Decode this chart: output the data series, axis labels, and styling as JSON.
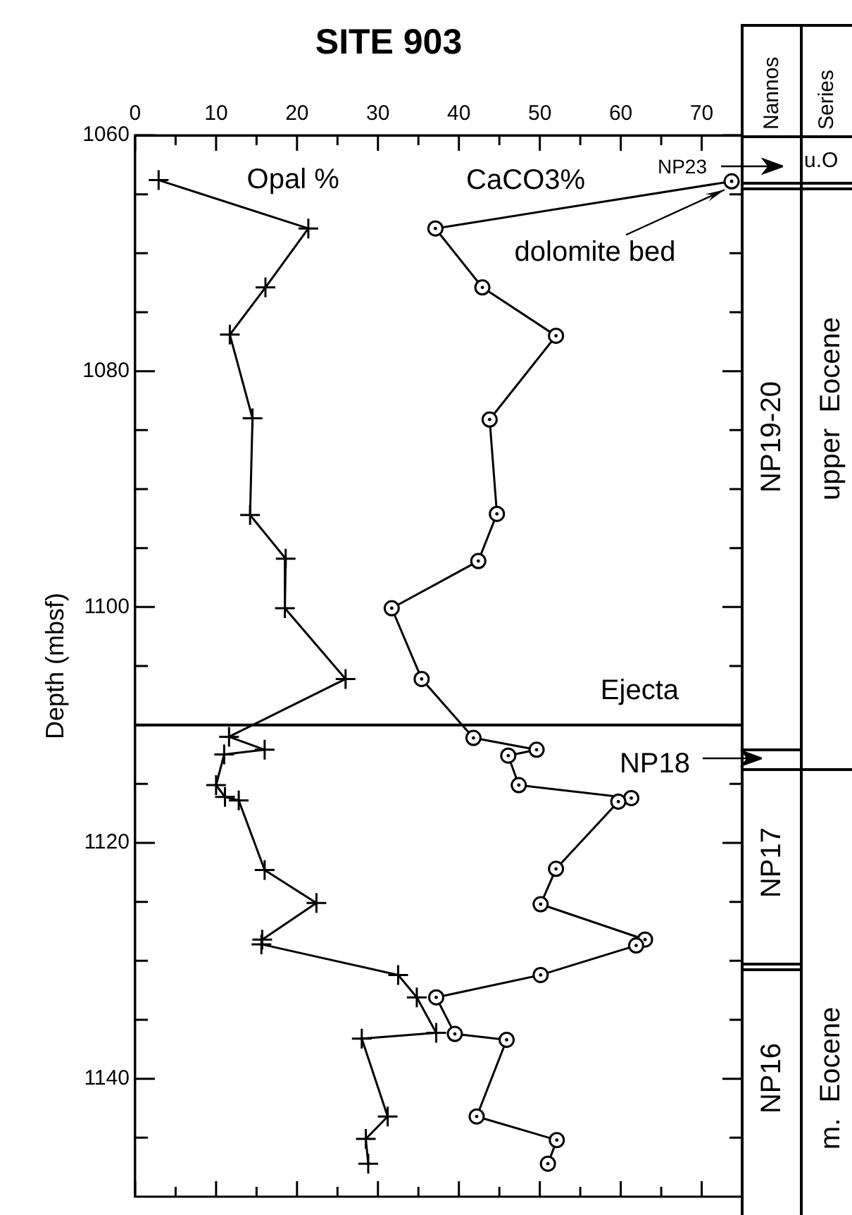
{
  "chart_data": {
    "type": "line",
    "title": "SITE 903",
    "ylabel": "Depth (mbsf)",
    "xlim": [
      0,
      75
    ],
    "xticks": [
      0,
      {
        "value": 5,
        "label": null
      },
      10,
      {
        "value": 15,
        "label": null
      },
      20,
      {
        "value": 25,
        "label": null
      },
      30,
      {
        "value": 35,
        "label": null
      },
      40,
      {
        "value": 45,
        "label": null
      },
      50,
      {
        "value": 55,
        "label": null
      },
      60,
      {
        "value": 65,
        "label": null
      },
      70
    ],
    "ylim": [
      1150,
      1060
    ],
    "yticks": [
      1060,
      {
        "value": 1065,
        "label": null
      },
      {
        "value": 1070,
        "label": null
      },
      {
        "value": 1075,
        "label": null
      },
      1080,
      {
        "value": 1085,
        "label": null
      },
      {
        "value": 1090,
        "label": null
      },
      {
        "value": 1095,
        "label": null
      },
      1100,
      {
        "value": 1105,
        "label": null
      },
      {
        "value": 1110,
        "label": null
      },
      {
        "value": 1115,
        "label": null
      },
      1120,
      {
        "value": 1125,
        "label": null
      },
      {
        "value": 1130,
        "label": null
      },
      {
        "value": 1135,
        "label": null
      },
      1140,
      {
        "value": 1145,
        "label": null
      }
    ],
    "grid": false,
    "legend": false,
    "series": [
      {
        "name": "Opal %",
        "color": "#000000",
        "marker": "cross",
        "x": [
          2.9,
          21.4,
          16.1,
          11.7,
          14.5,
          14.2,
          18.6,
          18.5,
          26.0,
          11.6,
          16.0,
          11.0,
          10.0,
          11.1,
          12.8,
          16.0,
          22.4,
          15.7,
          15.6,
          32.5,
          34.8,
          37.2,
          28.0,
          31.2,
          28.5,
          28.8
        ],
        "values": [
          1063.8,
          1067.9,
          1072.9,
          1076.9,
          1084.0,
          1092.2,
          1095.9,
          1100.1,
          1106.1,
          1111.0,
          1112.1,
          1112.5,
          1115.1,
          1116.1,
          1116.4,
          1122.3,
          1125.1,
          1128.2,
          1128.6,
          1131.2,
          1133.1,
          1136.1,
          1136.6,
          1143.2,
          1145.1,
          1147.2
        ]
      },
      {
        "name": "CaCO3%",
        "color": "#000000",
        "marker": "circle",
        "x": [
          73.7,
          37.1,
          42.9,
          52.0,
          43.8,
          44.7,
          42.4,
          31.7,
          35.4,
          41.8,
          49.6,
          46.1,
          47.4,
          61.3,
          59.7,
          52.0,
          50.1,
          63.0,
          61.9,
          50.1,
          37.2,
          39.5,
          45.9,
          42.2,
          52.1,
          51.0
        ],
        "values": [
          1063.9,
          1067.9,
          1072.9,
          1077.0,
          1084.1,
          1092.1,
          1096.1,
          1100.1,
          1106.1,
          1111.1,
          1112.1,
          1112.6,
          1115.1,
          1116.2,
          1116.5,
          1122.2,
          1125.2,
          1128.2,
          1128.7,
          1131.2,
          1133.1,
          1136.2,
          1136.7,
          1143.2,
          1145.2,
          1147.2
        ]
      }
    ],
    "ref_lines": [
      {
        "axis": "y",
        "value": 1110,
        "label": "Ejecta"
      }
    ],
    "annotations": [
      "Nannos",
      "Series",
      "NP23",
      "u.O",
      "NP19-20",
      "upper  Eocene",
      "NP18",
      "NP17",
      "NP16",
      "m.  Eocene",
      {
        "text": "dolomite bed",
        "x": 73.7,
        "y": 1063.9
      }
    ]
  }
}
